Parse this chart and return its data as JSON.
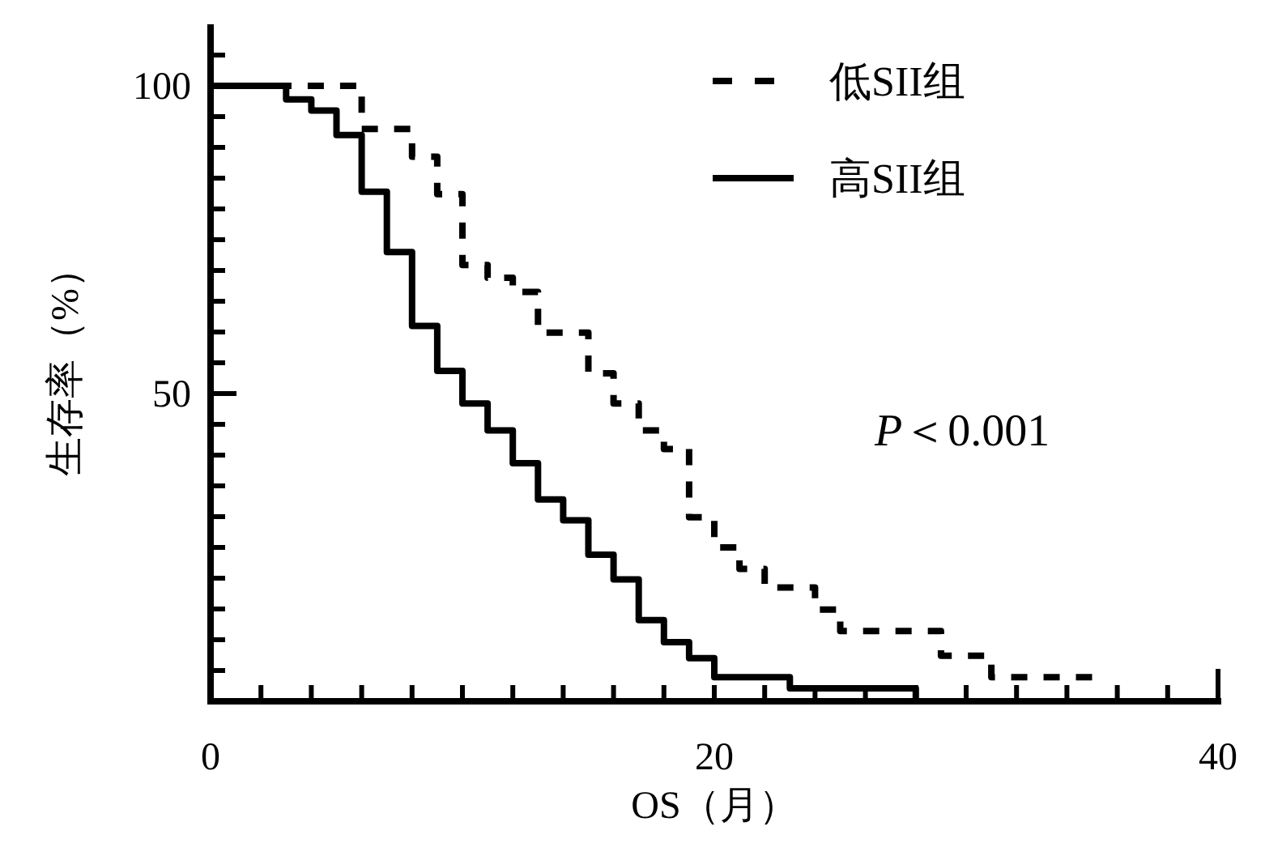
{
  "chart_data": {
    "type": "step",
    "xlabel": "OS（月）",
    "ylabel": "生存率（%）",
    "xlim": [
      0,
      40
    ],
    "ylim": [
      0,
      110
    ],
    "xticks": [
      0,
      {
        "value": 2,
        "label": null
      },
      {
        "value": 4,
        "label": null
      },
      {
        "value": 6,
        "label": null
      },
      {
        "value": 8,
        "label": null
      },
      {
        "value": 10,
        "label": null
      },
      {
        "value": 12,
        "label": null
      },
      {
        "value": 14,
        "label": null
      },
      {
        "value": 16,
        "label": null
      },
      {
        "value": 18,
        "label": null
      },
      20,
      {
        "value": 22,
        "label": null
      },
      {
        "value": 24,
        "label": null
      },
      {
        "value": 26,
        "label": null
      },
      {
        "value": 28,
        "label": null
      },
      {
        "value": 30,
        "label": null
      },
      {
        "value": 32,
        "label": null
      },
      {
        "value": 34,
        "label": null
      },
      {
        "value": 36,
        "label": null
      },
      {
        "value": 38,
        "label": null
      },
      40
    ],
    "yticks": [
      {
        "value": 5,
        "label": null
      },
      {
        "value": 10,
        "label": null
      },
      {
        "value": 15,
        "label": null
      },
      {
        "value": 20,
        "label": null
      },
      {
        "value": 25,
        "label": null
      },
      {
        "value": 30,
        "label": null
      },
      {
        "value": 35,
        "label": null
      },
      {
        "value": 40,
        "label": null
      },
      {
        "value": 45,
        "label": null
      },
      50,
      {
        "value": 55,
        "label": null
      },
      {
        "value": 60,
        "label": null
      },
      {
        "value": 65,
        "label": null
      },
      {
        "value": 70,
        "label": null
      },
      {
        "value": 75,
        "label": null
      },
      {
        "value": 80,
        "label": null
      },
      {
        "value": 85,
        "label": null
      },
      {
        "value": 90,
        "label": null
      },
      {
        "value": 95,
        "label": null
      },
      100,
      {
        "value": 105,
        "label": null
      }
    ],
    "series": [
      {
        "name": "低SII组",
        "color": "#000000",
        "line_style": "dashed",
        "x": [
          0,
          6,
          8,
          9,
          10,
          11,
          12,
          13,
          15,
          16,
          17,
          18,
          19,
          20,
          21,
          22,
          24,
          25,
          29,
          31,
          35
        ],
        "values": [
          100,
          93,
          88.5,
          82.4,
          70.9,
          68.8,
          66.5,
          59.9,
          53.3,
          48.4,
          44,
          41,
          29.9,
          25,
          21.5,
          18.5,
          14.9,
          11.4,
          7.4,
          3.9,
          3.9
        ]
      },
      {
        "name": "高SII组",
        "color": "#000000",
        "line_style": "solid",
        "x": [
          0,
          3,
          4,
          5,
          6,
          7,
          8,
          9,
          10,
          11,
          12,
          13,
          14,
          15,
          16,
          17,
          18,
          19,
          20,
          23,
          28,
          28
        ],
        "values": [
          100,
          97.8,
          96,
          92,
          82.8,
          73,
          61,
          53.7,
          48.4,
          44,
          38.7,
          32.8,
          29.4,
          23.8,
          19.8,
          13.2,
          9.6,
          7,
          3.9,
          2.1,
          2.1,
          0
        ]
      }
    ],
    "annotations": [
      "*P*＜0.001"
    ],
    "legend": "top right",
    "marker": "none",
    "grid": false
  }
}
